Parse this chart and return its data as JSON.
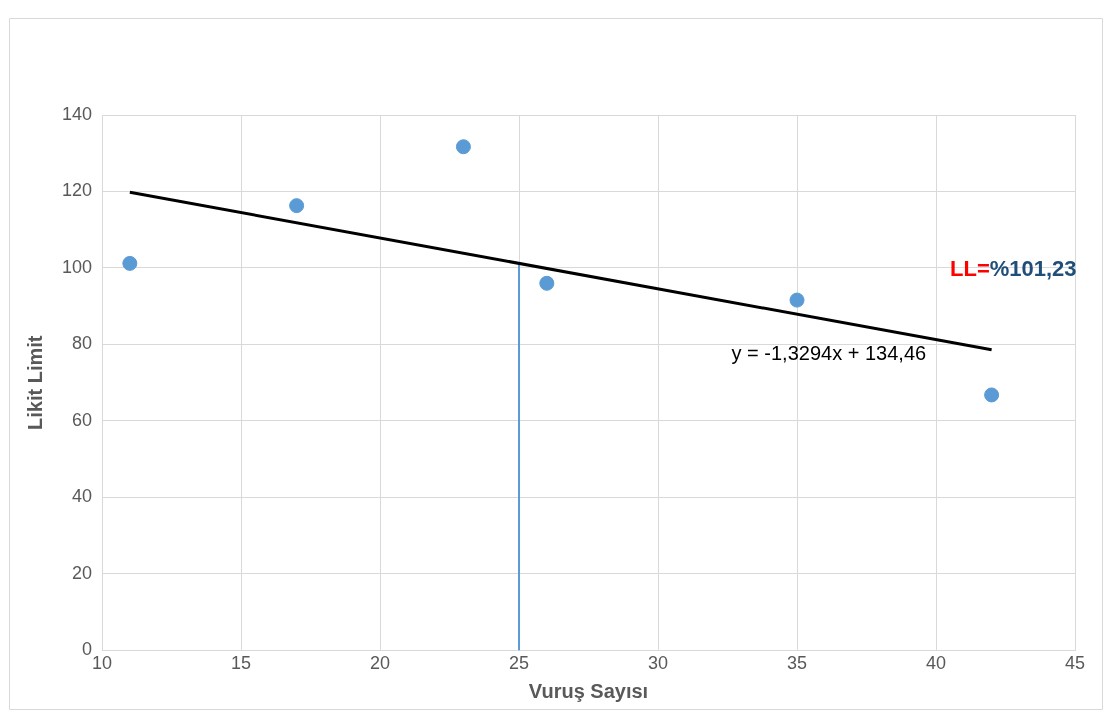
{
  "chart_data": {
    "type": "scatter",
    "xlabel": "Vuruş Sayısı",
    "ylabel": "Likit Limit",
    "xlim": [
      10,
      45
    ],
    "xticks": [
      10,
      15,
      20,
      25,
      30,
      35,
      40,
      45
    ],
    "ylim": [
      0,
      140
    ],
    "yticks": [
      0,
      20,
      40,
      60,
      80,
      100,
      120,
      140
    ],
    "grid": true,
    "legend": false,
    "series": [
      {
        "marker": "circle",
        "color": "#5b9bd5",
        "x": [
          11,
          17,
          23,
          26,
          35,
          42
        ],
        "values": [
          101.2,
          116.3,
          131.7,
          96.0,
          91.6,
          66.8
        ]
      },
      {
        "type": "line",
        "marker": "none",
        "color": "#000000",
        "x": [
          11,
          42
        ],
        "values": [
          119.8,
          78.6
        ]
      },
      {
        "type": "line",
        "marker": "none",
        "color": "#5b9bd5",
        "x": [
          25,
          25
        ],
        "values": [
          0,
          101.2
        ]
      }
    ],
    "annotations": [
      "y = -1,3294x + 134,46",
      "LL=",
      "%101,23"
    ]
  }
}
